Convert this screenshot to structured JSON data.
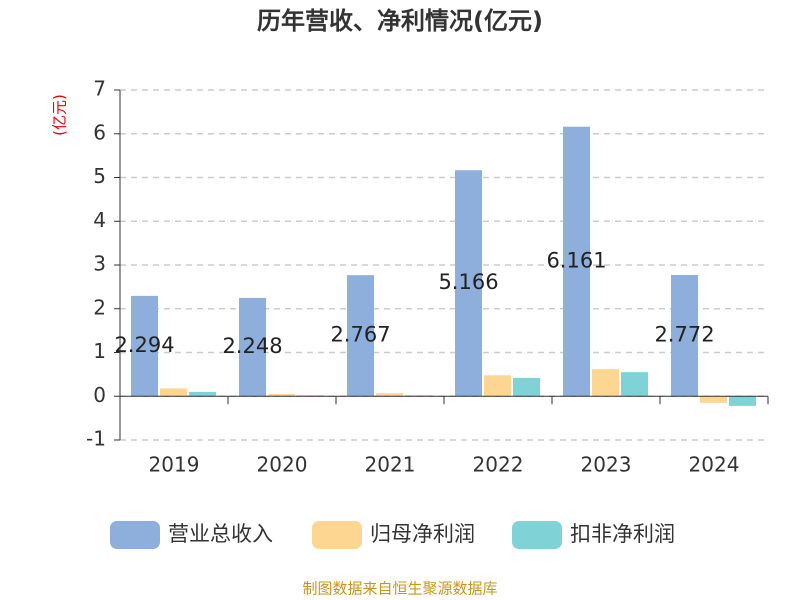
{
  "chart_data": {
    "type": "bar",
    "title": "历年营收、净利情况(亿元)",
    "y_label": "(亿元)",
    "categories": [
      "2019",
      "2020",
      "2021",
      "2022",
      "2023",
      "2024"
    ],
    "series": [
      {
        "name": "营业总收入",
        "color": "#8eaedb",
        "values": [
          2.294,
          2.248,
          2.767,
          5.166,
          6.161,
          2.772
        ],
        "show_values": true
      },
      {
        "name": "归母净利润",
        "color": "#fdd692",
        "values": [
          0.18,
          0.05,
          0.07,
          0.48,
          0.62,
          -0.15
        ],
        "show_values": false
      },
      {
        "name": "扣非净利润",
        "color": "#7fd3d6",
        "values": [
          0.1,
          0.02,
          0.02,
          0.42,
          0.55,
          -0.22
        ],
        "show_values": false
      }
    ],
    "ylim": [
      -1,
      7
    ],
    "yticks": [
      -1,
      0,
      1,
      2,
      3,
      4,
      5,
      6,
      7
    ],
    "grid": true,
    "source": "制图数据来自恒生聚源数据库"
  }
}
